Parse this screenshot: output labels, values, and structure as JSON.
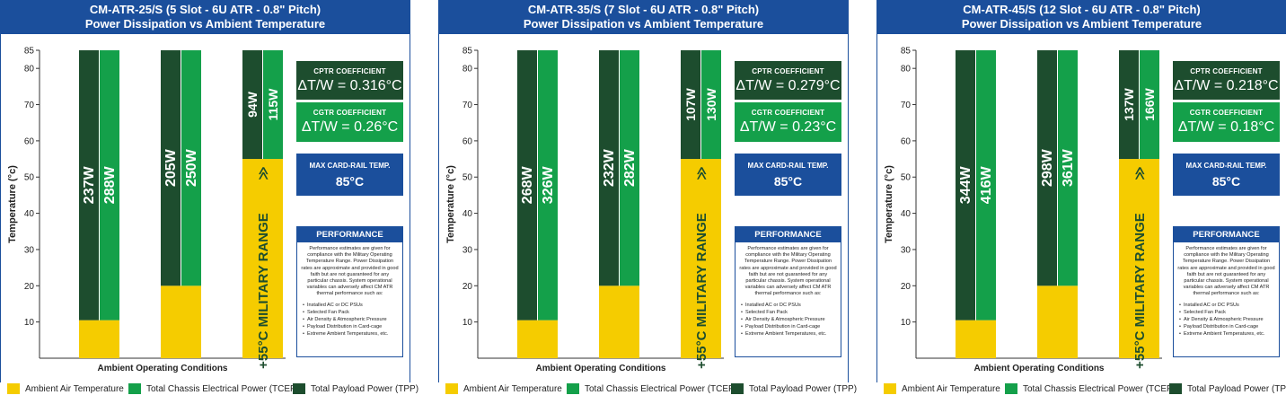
{
  "charts": [
    {
      "title_line1": "CM-ATR-25/S (5 Slot - 6U ATR - 0.8\" Pitch)",
      "title_line2": "Power Dissipation vs Ambient Temperature",
      "bars": [
        {
          "ambient": 10.5,
          "tpp_label": "237W",
          "tcep_label": "288W"
        },
        {
          "ambient": 20,
          "tpp_label": "205W",
          "tcep_label": "250W"
        },
        {
          "ambient": 55,
          "tpp_label": "94W",
          "tcep_label": "115W",
          "military": true
        }
      ],
      "cptr_title": "CPTR COEFFICIENT",
      "cptr_value": "ΔT/W = 0.316°C",
      "cgtr_title": "CGTR COEFFICIENT",
      "cgtr_value": "ΔT/W = 0.26°C"
    },
    {
      "title_line1": "CM-ATR-35/S (7 Slot - 6U ATR - 0.8\" Pitch)",
      "title_line2": "Power Dissipation vs Ambient Temperature",
      "bars": [
        {
          "ambient": 10.5,
          "tpp_label": "268W",
          "tcep_label": "326W"
        },
        {
          "ambient": 20,
          "tpp_label": "232W",
          "tcep_label": "282W"
        },
        {
          "ambient": 55,
          "tpp_label": "107W",
          "tcep_label": "130W",
          "military": true
        }
      ],
      "cptr_title": "CPTR COEFFICIENT",
      "cptr_value": "ΔT/W = 0.279°C",
      "cgtr_title": "CGTR COEFFICIENT",
      "cgtr_value": "ΔT/W = 0.23°C"
    },
    {
      "title_line1": "CM-ATR-45/S (12 Slot - 6U ATR - 0.8\" Pitch)",
      "title_line2": "Power Dissipation vs Ambient Temperature",
      "bars": [
        {
          "ambient": 10.5,
          "tpp_label": "344W",
          "tcep_label": "416W"
        },
        {
          "ambient": 20,
          "tpp_label": "298W",
          "tcep_label": "361W"
        },
        {
          "ambient": 55,
          "tpp_label": "137W",
          "tcep_label": "166W",
          "military": true
        }
      ],
      "cptr_title": "CPTR COEFFICIENT",
      "cptr_value": "ΔT/W = 0.218°C",
      "cgtr_title": "CGTR COEFFICIENT",
      "cgtr_value": "ΔT/W = 0.18°C"
    }
  ],
  "chart_data": [
    {
      "type": "bar",
      "title": "CM-ATR-25/S (5 Slot - 6U ATR - 0.8\" Pitch) Power Dissipation vs Ambient Temperature",
      "ylabel": "Temperature (°c)",
      "xlabel": "Ambient Operating Conditions",
      "ylim": [
        0,
        85
      ],
      "yticks": [
        10,
        20,
        30,
        40,
        50,
        60,
        70,
        80,
        85
      ],
      "series": [
        {
          "name": "Ambient Air Temperature",
          "values": [
            10.5,
            20,
            55
          ]
        },
        {
          "name": "Total Payload Power (TPP)",
          "values": [
            237,
            205,
            94
          ]
        },
        {
          "name": "Total Chassis Electrical Power (TCEP)",
          "values": [
            288,
            250,
            115
          ]
        }
      ]
    },
    {
      "type": "bar",
      "title": "CM-ATR-35/S (7 Slot - 6U ATR - 0.8\" Pitch) Power Dissipation vs Ambient Temperature",
      "ylabel": "Temperature (°c)",
      "xlabel": "Ambient Operating Conditions",
      "ylim": [
        0,
        85
      ],
      "yticks": [
        10,
        20,
        30,
        40,
        50,
        60,
        70,
        80,
        85
      ],
      "series": [
        {
          "name": "Ambient Air Temperature",
          "values": [
            10.5,
            20,
            55
          ]
        },
        {
          "name": "Total Payload Power (TPP)",
          "values": [
            268,
            232,
            107
          ]
        },
        {
          "name": "Total Chassis Electrical Power (TCEP)",
          "values": [
            326,
            282,
            130
          ]
        }
      ]
    },
    {
      "type": "bar",
      "title": "CM-ATR-45/S (12 Slot - 6U ATR - 0.8\" Pitch) Power Dissipation vs Ambient Temperature",
      "ylabel": "Temperature (°c)",
      "xlabel": "Ambient Operating Conditions",
      "ylim": [
        0,
        85
      ],
      "yticks": [
        10,
        20,
        30,
        40,
        50,
        60,
        70,
        80,
        85
      ],
      "series": [
        {
          "name": "Ambient Air Temperature",
          "values": [
            10.5,
            20,
            55
          ]
        },
        {
          "name": "Total Payload Power (TPP)",
          "values": [
            344,
            298,
            137
          ]
        },
        {
          "name": "Total Chassis Electrical Power (TCEP)",
          "values": [
            416,
            361,
            166
          ]
        }
      ]
    }
  ],
  "common": {
    "ylabel": "Temperature (°c)",
    "xlabel": "Ambient Operating Conditions",
    "yticks": [
      10,
      20,
      30,
      40,
      50,
      60,
      70,
      80,
      85
    ],
    "ymax": 85,
    "military_label": "+55°C MILITARY RANGE",
    "arrow": "≫",
    "max_title": "MAX CARD-RAIL TEMP.",
    "max_value": "85°C",
    "perf_title": "PERFORMANCE",
    "perf_text": "Performance estimates are given for compliance with the Military Operating Temperature Range. Power Dissipation rates are approximate and provided in good faith but are not guaranteed for any particular chassis. System operational variables can adversely affect CM ATR thermal performance such as:",
    "perf_items": [
      "Installed AC or DC PSUs",
      "Selected Fan Pack",
      "Air Density & Atmospheric Pressure",
      "Payload Distribution in Card-cage",
      "Extreme Ambient Temperatures, etc."
    ],
    "legend": [
      {
        "label": "Ambient Air Temperature",
        "color": "#f5cc00"
      },
      {
        "label": "Total Chassis Electrical Power (TCEP)",
        "color": "#14a04a"
      },
      {
        "label": "Total Payload Power (TPP)",
        "color": "#1d4d2e"
      }
    ],
    "colors": {
      "header": "#1b4f9c",
      "ambient": "#f5cc00",
      "tcep": "#14a04a",
      "tpp": "#1d4d2e",
      "frame": "#1b4f9c"
    }
  }
}
